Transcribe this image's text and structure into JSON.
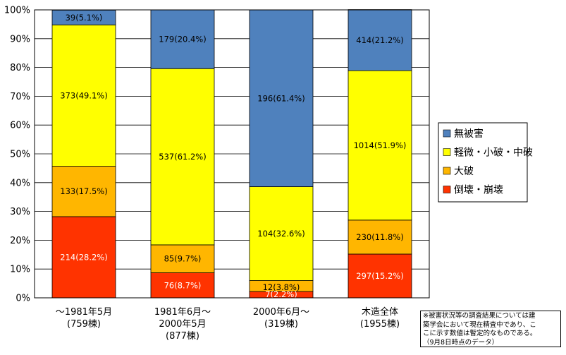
{
  "chart_data": {
    "type": "bar",
    "stacked": true,
    "categories": [
      [
        "～1981年5月",
        "(759棟)"
      ],
      [
        "1981年6月～",
        "2000年5月",
        "(877棟)"
      ],
      [
        "2000年6月～",
        "(319棟)"
      ],
      [
        "木造全体",
        "(1955棟)"
      ]
    ],
    "series": [
      {
        "name": "倒壊・崩壊",
        "color": "#ff3300",
        "label_color": "#ffffff",
        "values": [
          28.2,
          8.7,
          2.2,
          15.2
        ],
        "labels": [
          "214(28.2%)",
          "76(8.7%)",
          "7(2.2%)",
          "297(15.2%)"
        ]
      },
      {
        "name": "大破",
        "color": "#ffb600",
        "label_color": "#000000",
        "values": [
          17.5,
          9.7,
          3.8,
          11.8
        ],
        "labels": [
          "133(17.5%)",
          "85(9.7%)",
          "12(3.8%)",
          "230(11.8%)"
        ]
      },
      {
        "name": "軽微・小破・中破",
        "color": "#ffff00",
        "label_color": "#000000",
        "values": [
          49.1,
          61.2,
          32.6,
          51.9
        ],
        "labels": [
          "373(49.1%)",
          "537(61.2%)",
          "104(32.6%)",
          "1014(51.9%)"
        ]
      },
      {
        "name": "無被害",
        "color": "#4f81bd",
        "label_color": "#000000",
        "values": [
          5.1,
          20.4,
          61.4,
          21.2
        ],
        "labels": [
          "39(5.1%)",
          "179(20.4%)",
          "196(61.4%)",
          "414(21.2%)"
        ]
      }
    ],
    "legend_order": [
      3,
      2,
      1,
      0
    ],
    "yticks": [
      "0%",
      "10%",
      "20%",
      "30%",
      "40%",
      "50%",
      "60%",
      "70%",
      "80%",
      "90%",
      "100%"
    ],
    "ylim": [
      0,
      100
    ],
    "title": "",
    "xlabel": "",
    "ylabel": ""
  },
  "note": {
    "lines": [
      "※被害状況等の調査結果については建",
      "築学会において現在精査中であり、こ",
      "こに示す数値は暫定的なものである。",
      "（9月8日時点のデータ）"
    ]
  }
}
